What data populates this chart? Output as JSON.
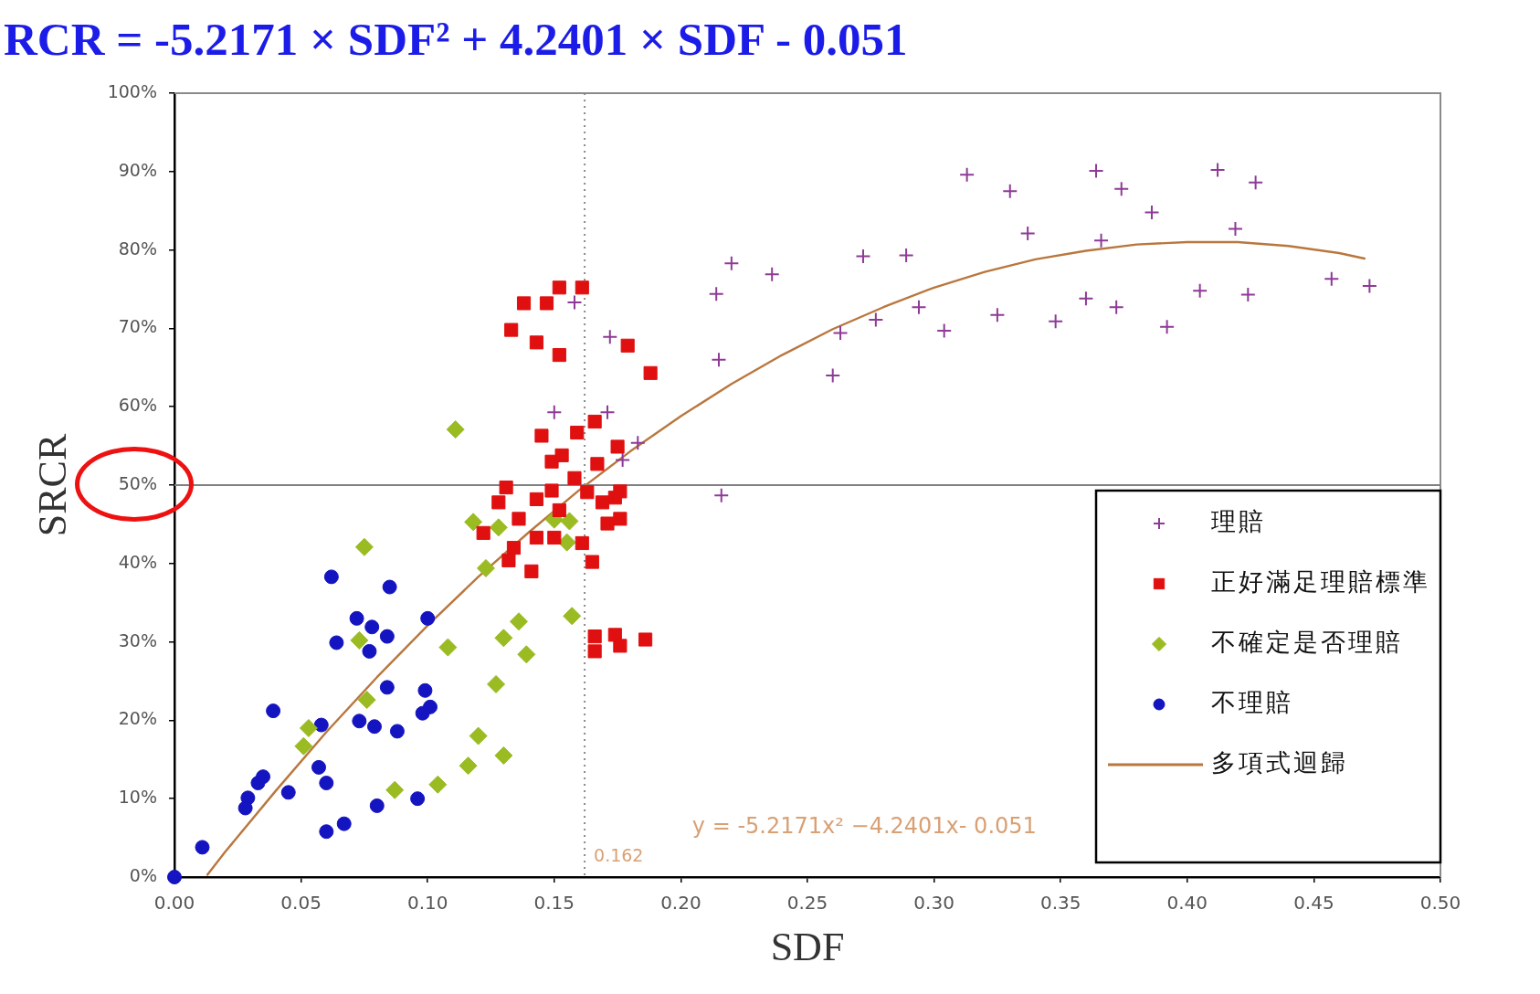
{
  "chart_data": {
    "type": "scatter",
    "title": "RCR = -5.2171 × SDF² + 4.2401 × SDF - 0.051",
    "xlabel": "SDF",
    "ylabel": "SRCR",
    "xlim": [
      0,
      0.5
    ],
    "xticks": [
      {
        "value": 0,
        "label": "0.00"
      },
      {
        "value": 0.05,
        "label": "0.05"
      },
      {
        "value": 0.1,
        "label": "0.10"
      },
      {
        "value": 0.15,
        "label": "0.15"
      },
      {
        "value": 0.2,
        "label": "0.20"
      },
      {
        "value": 0.25,
        "label": "0.25"
      },
      {
        "value": 0.3,
        "label": "0.30"
      },
      {
        "value": 0.35,
        "label": "0.35"
      },
      {
        "value": 0.4,
        "label": "0.40"
      },
      {
        "value": 0.45,
        "label": "0.45"
      },
      {
        "value": 0.5,
        "label": "0.50"
      }
    ],
    "ylim": [
      0,
      100
    ],
    "yticks": [
      {
        "value": 0,
        "label": "0%"
      },
      {
        "value": 10,
        "label": "10%"
      },
      {
        "value": 20,
        "label": "20%"
      },
      {
        "value": 30,
        "label": "30%"
      },
      {
        "value": 40,
        "label": "40%"
      },
      {
        "value": 50,
        "label": "50%"
      },
      {
        "value": 60,
        "label": "60%"
      },
      {
        "value": 70,
        "label": "70%"
      },
      {
        "value": 80,
        "label": "80%"
      },
      {
        "value": 90,
        "label": "90%"
      },
      {
        "value": 100,
        "label": "100%"
      }
    ],
    "grid": false,
    "legend": "bottom right",
    "series": [
      {
        "name": "理賠",
        "color": "#8e3a96",
        "marker": "cross",
        "x": [
          0.158,
          0.172,
          0.15,
          0.171,
          0.183,
          0.177,
          0.214,
          0.22,
          0.236,
          0.215,
          0.216,
          0.26,
          0.263,
          0.272,
          0.277,
          0.289,
          0.294,
          0.304,
          0.313,
          0.33,
          0.337,
          0.325,
          0.348,
          0.36,
          0.364,
          0.366,
          0.374,
          0.372,
          0.386,
          0.392,
          0.405,
          0.412,
          0.419,
          0.427,
          0.424,
          0.457,
          0.472
        ],
        "values": [
          73.3,
          68.9,
          59.3,
          59.3,
          55.4,
          53.2,
          74.4,
          78.3,
          76.9,
          66.0,
          48.7,
          64.0,
          69.4,
          79.2,
          71.1,
          79.3,
          72.7,
          69.7,
          89.6,
          87.5,
          82.1,
          71.7,
          70.9,
          73.8,
          90.1,
          81.2,
          87.8,
          72.7,
          84.8,
          70.2,
          74.8,
          90.2,
          82.7,
          88.6,
          74.3,
          76.3,
          75.4
        ]
      },
      {
        "name": "正好滿足理賠標準",
        "color": "#e01010",
        "marker": "square",
        "x": [
          0.152,
          0.161,
          0.138,
          0.147,
          0.133,
          0.143,
          0.152,
          0.179,
          0.188,
          0.166,
          0.145,
          0.159,
          0.175,
          0.149,
          0.153,
          0.167,
          0.158,
          0.131,
          0.128,
          0.149,
          0.143,
          0.163,
          0.169,
          0.174,
          0.176,
          0.136,
          0.122,
          0.152,
          0.171,
          0.176,
          0.143,
          0.15,
          0.161,
          0.134,
          0.132,
          0.141,
          0.165,
          0.166,
          0.166,
          0.174,
          0.176,
          0.186
        ],
        "values": [
          75.2,
          75.2,
          73.2,
          73.2,
          69.8,
          68.2,
          66.6,
          67.8,
          64.3,
          58.1,
          56.3,
          56.7,
          54.9,
          53.0,
          53.8,
          52.7,
          50.9,
          49.7,
          47.8,
          49.3,
          48.2,
          49.1,
          47.8,
          48.4,
          49.2,
          45.7,
          43.9,
          46.8,
          45.1,
          45.7,
          43.3,
          43.3,
          42.6,
          42.0,
          40.4,
          39.0,
          40.2,
          30.7,
          28.8,
          30.9,
          29.5,
          30.3
        ]
      },
      {
        "name": "不確定是否理賠",
        "color": "#9abb22",
        "marker": "diamond",
        "x": [
          0.111,
          0.075,
          0.118,
          0.128,
          0.15,
          0.156,
          0.155,
          0.123,
          0.073,
          0.108,
          0.13,
          0.136,
          0.157,
          0.139,
          0.127,
          0.076,
          0.053,
          0.051,
          0.12,
          0.13,
          0.116,
          0.104,
          0.087
        ],
        "values": [
          57.1,
          42.1,
          45.3,
          44.6,
          45.6,
          45.4,
          42.7,
          39.4,
          30.2,
          29.3,
          30.5,
          32.6,
          33.3,
          28.4,
          24.6,
          22.6,
          19.0,
          16.7,
          18.0,
          15.5,
          14.2,
          11.8,
          11.1
        ]
      },
      {
        "name": "不理賠",
        "color": "#1414c0",
        "marker": "circle",
        "x": [
          0,
          0.011,
          0.029,
          0.028,
          0.035,
          0.033,
          0.045,
          0.039,
          0.058,
          0.057,
          0.06,
          0.06,
          0.067,
          0.062,
          0.085,
          0.072,
          0.078,
          0.084,
          0.064,
          0.077,
          0.1,
          0.084,
          0.099,
          0.101,
          0.098,
          0.073,
          0.079,
          0.088,
          0.08,
          0.096
        ],
        "values": [
          0,
          3.8,
          10.1,
          8.8,
          12.8,
          12.0,
          10.8,
          21.2,
          19.4,
          14.0,
          12.0,
          5.8,
          6.8,
          38.3,
          37.0,
          33.0,
          31.9,
          30.7,
          29.9,
          28.8,
          33.0,
          24.2,
          23.8,
          21.7,
          20.9,
          19.9,
          19.2,
          18.6,
          9.1,
          10.0
        ]
      },
      {
        "name": "多項式迴歸",
        "type": "line",
        "color": "#b9773e",
        "marker": "none",
        "line_style": "solid",
        "x": [
          0.013,
          0.02,
          0.04,
          0.06,
          0.08,
          0.1,
          0.12,
          0.14,
          0.16,
          0.18,
          0.2,
          0.22,
          0.24,
          0.26,
          0.28,
          0.3,
          0.32,
          0.34,
          0.36,
          0.38,
          0.4,
          0.42,
          0.44,
          0.46,
          0.47
        ],
        "values": [
          0.3,
          3.2,
          11.0,
          18.5,
          25.5,
          32.1,
          38.3,
          44.0,
          49.4,
          54.3,
          58.8,
          62.9,
          66.6,
          69.9,
          72.7,
          75.2,
          77.2,
          78.8,
          79.9,
          80.7,
          81.0,
          81.0,
          80.5,
          79.6,
          78.9
        ]
      }
    ],
    "ref_lines": [
      {
        "axis": "y",
        "value": 50,
        "color": "#808080",
        "line_style": "solid"
      },
      {
        "axis": "x",
        "value": 0.162,
        "label": "0.162",
        "color": "#8a8a8a",
        "line_style": "dotted"
      }
    ],
    "annotations": [
      "y = -5.2171x² −4.2401x- 0.051"
    ]
  }
}
